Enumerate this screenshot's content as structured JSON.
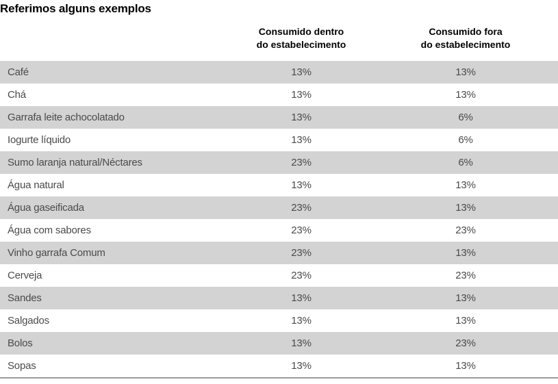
{
  "page": {
    "title": "Referimos alguns exemplos"
  },
  "table": {
    "headers": {
      "dentro": "Consumido dentro\ndo estabelecimento",
      "fora": "Consumido fora\ndo estabelecimento"
    },
    "rows": [
      {
        "label": "Café",
        "dentro": "13%",
        "fora": "13%"
      },
      {
        "label": "Chá",
        "dentro": "13%",
        "fora": "13%"
      },
      {
        "label": "Garrafa leite achocolatado",
        "dentro": "13%",
        "fora": "6%"
      },
      {
        "label": "Iogurte líquido",
        "dentro": "13%",
        "fora": "6%"
      },
      {
        "label": "Sumo laranja natural/Néctares",
        "dentro": "23%",
        "fora": "6%"
      },
      {
        "label": "Água natural",
        "dentro": "13%",
        "fora": "13%"
      },
      {
        "label": "Água gaseificada",
        "dentro": "23%",
        "fora": "13%"
      },
      {
        "label": "Água com sabores",
        "dentro": "23%",
        "fora": "23%"
      },
      {
        "label": "Vinho garrafa Comum",
        "dentro": "23%",
        "fora": "13%"
      },
      {
        "label": "Cerveja",
        "dentro": "23%",
        "fora": "23%"
      },
      {
        "label": "Sandes",
        "dentro": "13%",
        "fora": "13%"
      },
      {
        "label": "Salgados",
        "dentro": "13%",
        "fora": "13%"
      },
      {
        "label": "Bolos",
        "dentro": "13%",
        "fora": "23%"
      },
      {
        "label": "Sopas",
        "dentro": "13%",
        "fora": "13%"
      }
    ]
  },
  "colors": {
    "stripe": "#d3d3d3",
    "row_text": "#4a4a4a",
    "heading_text": "#000000",
    "bottom_rule": "#9a9a9a"
  }
}
